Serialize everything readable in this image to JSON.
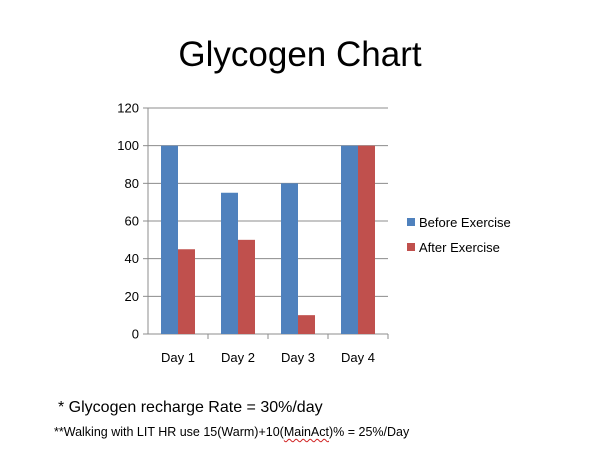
{
  "title": "Glycogen Chart",
  "notes": {
    "line1": "* Glycogen recharge Rate = 30%/day",
    "line2_before": "**Walking with LIT HR use 15(Warm)+10(",
    "line2_misspelled": "MainAct",
    "line2_after": ")%  = 25%/Day"
  },
  "colors": {
    "before": "#4f81bd",
    "after": "#c0504d",
    "grid": "#8c8c8c",
    "axis": "#8c8c8c"
  },
  "chart_data": {
    "type": "bar",
    "title": "Glycogen Chart",
    "categories": [
      "Day 1",
      "Day 2",
      "Day 3",
      "Day 4"
    ],
    "series": [
      {
        "name": "Before Exercise",
        "values": [
          100,
          75,
          80,
          100
        ]
      },
      {
        "name": "After Exercise",
        "values": [
          45,
          50,
          10,
          100
        ]
      }
    ],
    "ylim": [
      0,
      120
    ],
    "yticks": [
      0,
      20,
      40,
      60,
      80,
      100,
      120
    ],
    "grid": true,
    "legend": "right"
  }
}
